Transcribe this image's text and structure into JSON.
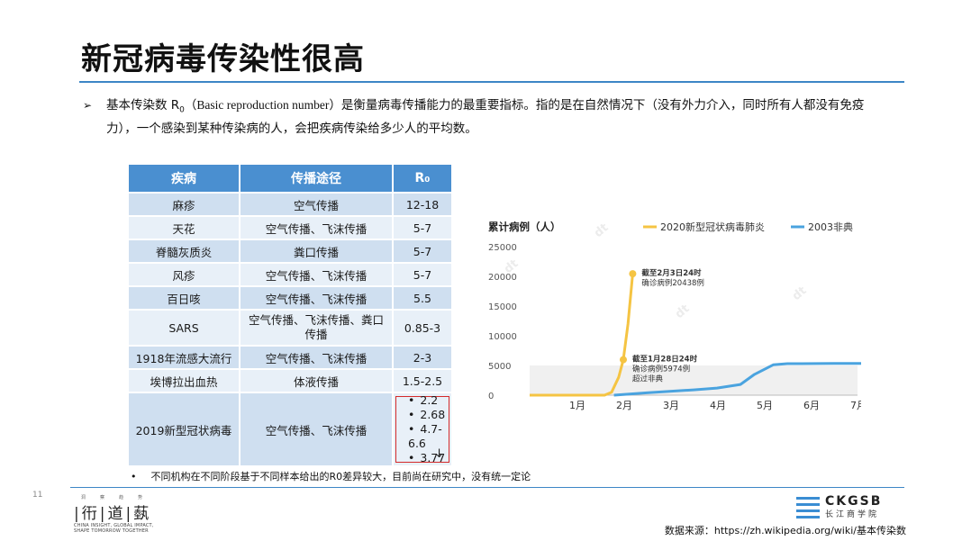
{
  "slide": {
    "title": "新冠病毒传染性很高",
    "bullet_arrow": "➢",
    "bullet_p1": "基本传染数 R",
    "bullet_sub": "0",
    "bullet_en": "（Basic reproduction number）",
    "bullet_p2": "是衡量病毒传播能力的最重要指标。指的是在自然情况下（没有外力介入，同时所有人都没有免疫力），一个感染到某种传染病的人，会把疾病传染给多少人的平均数。",
    "page_number": "11",
    "footnote": "不同机构在不同阶段基于不同样本给出的R0差异较大，目前尚在研究中，没有统一定论",
    "footnote_bullet": "•",
    "source": "数据来源：https://zh.wikipedia.org/wiki/基本传染数"
  },
  "table": {
    "headers": {
      "disease": "疾病",
      "route": "传播途径",
      "r0": "R₀"
    },
    "rows": [
      {
        "disease": "麻疹",
        "route": "空气传播",
        "r0": "12-18"
      },
      {
        "disease": "天花",
        "route": "空气传播、飞沫传播",
        "r0": "5-7"
      },
      {
        "disease": "脊髓灰质炎",
        "route": "粪口传播",
        "r0": "5-7"
      },
      {
        "disease": "风疹",
        "route": "空气传播、飞沫传播",
        "r0": "5-7"
      },
      {
        "disease": "百日咳",
        "route": "空气传播、飞沫传播",
        "r0": "5.5"
      },
      {
        "disease": "SARS",
        "route": "空气传播、飞沫传播、粪口传播",
        "r0": "0.85-3"
      },
      {
        "disease": "1918年流感大流行",
        "route": "空气传播、飞沫传播",
        "r0": "2-3"
      },
      {
        "disease": "埃博拉出血热",
        "route": "体液传播",
        "r0": "1.5-2.5"
      }
    ],
    "covid": {
      "disease": "2019新型冠状病毒",
      "route": "空气传播、飞沫传播",
      "r0_values": [
        "2.2",
        "2.68",
        "4.7-6.6",
        "3.77"
      ],
      "arrow": "↓"
    }
  },
  "footer_logo": {
    "small_chars": [
      "洞",
      "察",
      "趋",
      "势"
    ],
    "big_chars": [
      "衎",
      "道",
      "蓺"
    ],
    "line1": "CHINA INSIGHT, GLOBAL IMPACT,",
    "line2": "SHAPE TOMORROW TOGETHER",
    "ckgsb": "CKGSB",
    "ckgsb_cn": "长江商学院"
  },
  "chart_data": {
    "type": "line",
    "title": "累计病例（人）",
    "categories": [
      "1月",
      "2月",
      "3月",
      "4月",
      "5月",
      "6月",
      "7月"
    ],
    "yticks": [
      "0",
      "5000",
      "10000",
      "15000",
      "20000",
      "25000"
    ],
    "ylim": [
      0,
      25000
    ],
    "colors": {
      "covid": "#f5c443",
      "sars": "#4aa3df"
    },
    "series": [
      {
        "name": "2020新型冠状病毒肺炎",
        "x": [
          0,
          0.9,
          1.1,
          1.25,
          1.4,
          1.5,
          1.6,
          1.7
        ],
        "values": [
          0,
          0,
          0,
          500,
          3000,
          5974,
          12000,
          20438
        ]
      },
      {
        "name": "2003非典",
        "x": [
          1.3,
          2.0,
          3.0,
          3.5,
          4.0,
          4.3,
          4.7,
          5.0,
          6.0,
          6.7
        ],
        "values": [
          0,
          400,
          900,
          1200,
          1800,
          3500,
          5100,
          5300,
          5330,
          5330
        ]
      }
    ],
    "annotations": [
      {
        "text1": "截至2月3日24时",
        "text2": "确诊病例20438例",
        "text3": "",
        "x": 1.7,
        "y": 20438
      },
      {
        "text1": "截至1月28日24时",
        "text2": "确诊病例5974例",
        "text3": "超过非典",
        "x": 1.5,
        "y": 5974
      }
    ],
    "band": [
      0,
      5000
    ]
  }
}
